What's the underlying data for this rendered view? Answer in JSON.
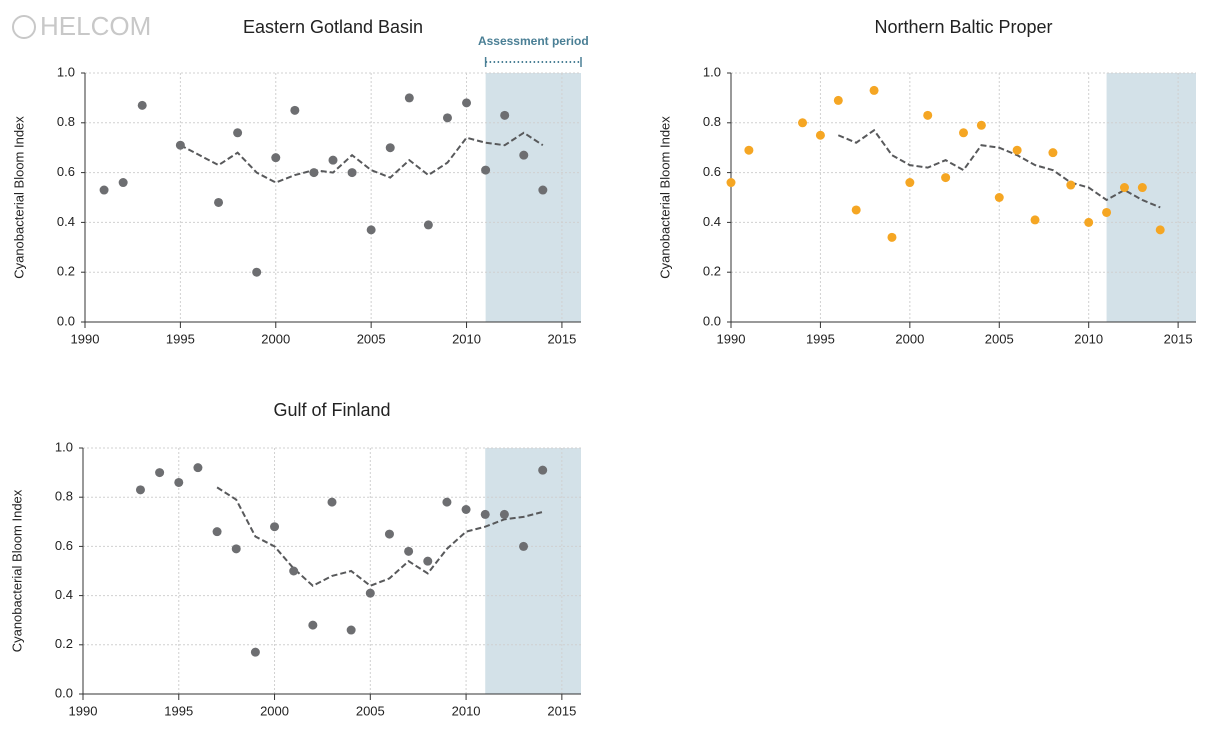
{
  "logo": "HELCOM",
  "chart_data": [
    {
      "type": "scatter",
      "title": "Eastern Gotland Basin",
      "ylabel": "Cyanobacterial Bloom Index",
      "xlim": [
        1990,
        2016
      ],
      "xticks": [
        1990,
        1995,
        2000,
        2005,
        2010,
        2015
      ],
      "ylim": [
        0,
        1
      ],
      "yticks": [
        {
          "value": 0,
          "label": "0.0"
        },
        {
          "value": 0.2,
          "label": "0.2"
        },
        {
          "value": 0.4,
          "label": "0.4"
        },
        {
          "value": 0.6,
          "label": "0.6"
        },
        {
          "value": 0.8,
          "label": "0.8"
        },
        {
          "value": 1,
          "label": "1.0"
        }
      ],
      "grid": true,
      "highlight": {
        "xlim": [
          2011,
          2016
        ],
        "color": "#d3e1e8"
      },
      "annotation": {
        "text": "Assessment period",
        "color": "#4a7f95"
      },
      "points": {
        "color": "#6d6e71",
        "x": [
          1991,
          1992,
          1993,
          1995,
          1997,
          1998,
          1999,
          2000,
          2001,
          2002,
          2003,
          2004,
          2005,
          2006,
          2007,
          2008,
          2009,
          2010,
          2011,
          2012,
          2013,
          2014
        ],
        "y": [
          0.53,
          0.56,
          0.87,
          0.71,
          0.48,
          0.76,
          0.2,
          0.66,
          0.85,
          0.6,
          0.65,
          0.6,
          0.37,
          0.7,
          0.9,
          0.39,
          0.82,
          0.88,
          0.61,
          0.83,
          0.67,
          0.53
        ]
      },
      "trend": {
        "color": "#58595b",
        "x": [
          1995,
          1996,
          1997,
          1998,
          1999,
          2000,
          2001,
          2002,
          2003,
          2004,
          2005,
          2006,
          2007,
          2008,
          2009,
          2010,
          2011,
          2012,
          2013,
          2014
        ],
        "y": [
          0.71,
          0.67,
          0.63,
          0.68,
          0.6,
          0.56,
          0.59,
          0.61,
          0.6,
          0.67,
          0.61,
          0.58,
          0.65,
          0.59,
          0.64,
          0.74,
          0.72,
          0.71,
          0.76,
          0.71
        ]
      }
    },
    {
      "type": "scatter",
      "title": "Northern Baltic Proper",
      "ylabel": "Cyanobacterial Bloom Index",
      "xlim": [
        1990,
        2016
      ],
      "xticks": [
        1990,
        1995,
        2000,
        2005,
        2010,
        2015
      ],
      "ylim": [
        0,
        1
      ],
      "yticks": [
        {
          "value": 0,
          "label": "0.0"
        },
        {
          "value": 0.2,
          "label": "0.2"
        },
        {
          "value": 0.4,
          "label": "0.4"
        },
        {
          "value": 0.6,
          "label": "0.6"
        },
        {
          "value": 0.8,
          "label": "0.8"
        },
        {
          "value": 1,
          "label": "1.0"
        }
      ],
      "grid": true,
      "highlight": {
        "xlim": [
          2011,
          2016
        ],
        "color": "#d3e1e8"
      },
      "points": {
        "color": "#f5a623",
        "x": [
          1990,
          1991,
          1994,
          1995,
          1996,
          1997,
          1998,
          1999,
          2000,
          2001,
          2002,
          2003,
          2004,
          2005,
          2006,
          2007,
          2008,
          2009,
          2010,
          2011,
          2012,
          2013,
          2014
        ],
        "y": [
          0.56,
          0.69,
          0.8,
          0.75,
          0.89,
          0.45,
          0.93,
          0.34,
          0.56,
          0.83,
          0.58,
          0.76,
          0.79,
          0.5,
          0.69,
          0.41,
          0.68,
          0.55,
          0.4,
          0.44,
          0.54,
          0.54,
          0.37
        ]
      },
      "trend": {
        "color": "#58595b",
        "x": [
          1996,
          1997,
          1998,
          1999,
          2000,
          2001,
          2002,
          2003,
          2004,
          2005,
          2006,
          2007,
          2008,
          2009,
          2010,
          2011,
          2012,
          2013,
          2014
        ],
        "y": [
          0.75,
          0.72,
          0.77,
          0.67,
          0.63,
          0.62,
          0.65,
          0.61,
          0.71,
          0.7,
          0.67,
          0.63,
          0.61,
          0.56,
          0.54,
          0.49,
          0.53,
          0.49,
          0.46
        ]
      }
    },
    {
      "type": "scatter",
      "title": "Gulf of Finland",
      "ylabel": "Cyanobacterial Bloom Index",
      "xlim": [
        1990,
        2016
      ],
      "xticks": [
        1990,
        1995,
        2000,
        2005,
        2010,
        2015
      ],
      "ylim": [
        0,
        1
      ],
      "yticks": [
        {
          "value": 0,
          "label": "0.0"
        },
        {
          "value": 0.2,
          "label": "0.2"
        },
        {
          "value": 0.4,
          "label": "0.4"
        },
        {
          "value": 0.6,
          "label": "0.6"
        },
        {
          "value": 0.8,
          "label": "0.8"
        },
        {
          "value": 1,
          "label": "1.0"
        }
      ],
      "grid": true,
      "highlight": {
        "xlim": [
          2011,
          2016
        ],
        "color": "#d3e1e8"
      },
      "points": {
        "color": "#6d6e71",
        "x": [
          1993,
          1994,
          1995,
          1996,
          1997,
          1998,
          1999,
          2000,
          2001,
          2002,
          2003,
          2004,
          2005,
          2006,
          2007,
          2008,
          2009,
          2010,
          2011,
          2012,
          2013,
          2014
        ],
        "y": [
          0.83,
          0.9,
          0.86,
          0.92,
          0.66,
          0.59,
          0.17,
          0.68,
          0.5,
          0.28,
          0.78,
          0.26,
          0.41,
          0.65,
          0.58,
          0.54,
          0.78,
          0.75,
          0.73,
          0.73,
          0.6,
          0.91
        ]
      },
      "trend": {
        "color": "#58595b",
        "x": [
          1997,
          1998,
          1999,
          2000,
          2001,
          2002,
          2003,
          2004,
          2005,
          2006,
          2007,
          2008,
          2009,
          2010,
          2011,
          2012,
          2013,
          2014
        ],
        "y": [
          0.84,
          0.79,
          0.64,
          0.6,
          0.51,
          0.44,
          0.48,
          0.5,
          0.44,
          0.47,
          0.54,
          0.49,
          0.59,
          0.66,
          0.68,
          0.71,
          0.72,
          0.74
        ]
      }
    }
  ]
}
